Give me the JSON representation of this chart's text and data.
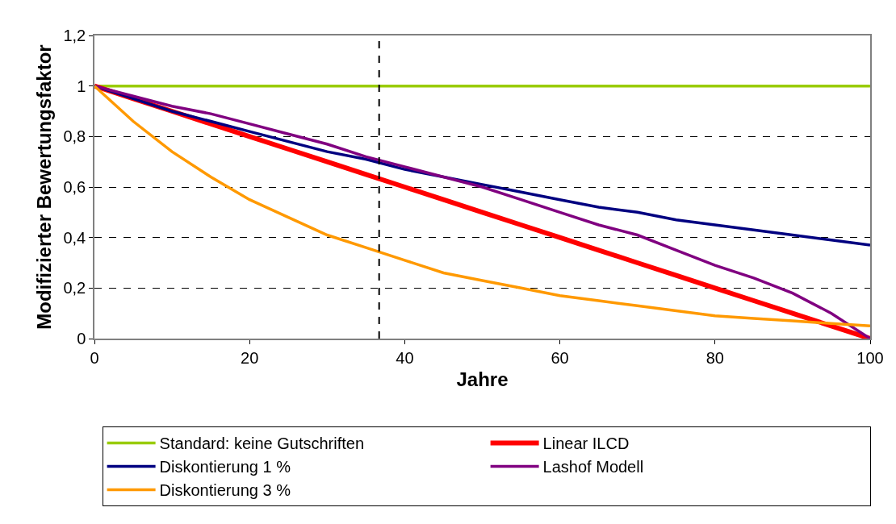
{
  "chart_data": {
    "type": "line",
    "xlabel": "Jahre",
    "ylabel": "Modifizierter Bewertungsfaktor",
    "x": [
      0,
      5,
      10,
      15,
      20,
      25,
      30,
      35,
      40,
      45,
      50,
      55,
      60,
      65,
      70,
      75,
      80,
      85,
      90,
      95,
      100
    ],
    "series": [
      {
        "name": "Standard: keine Gutschriften",
        "color": "#99cc00",
        "values": [
          1,
          1,
          1,
          1,
          1,
          1,
          1,
          1,
          1,
          1,
          1,
          1,
          1,
          1,
          1,
          1,
          1,
          1,
          1,
          1,
          1
        ]
      },
      {
        "name": "Linear ILCD",
        "color": "#ff0000",
        "values": [
          1,
          0.95,
          0.9,
          0.85,
          0.8,
          0.75,
          0.7,
          0.65,
          0.6,
          0.55,
          0.5,
          0.45,
          0.4,
          0.35,
          0.3,
          0.25,
          0.2,
          0.15,
          0.1,
          0.05,
          0
        ]
      },
      {
        "name": "Diskontierung 1 %",
        "color": "#000080",
        "values": [
          1,
          0.95,
          0.9,
          0.86,
          0.82,
          0.78,
          0.74,
          0.71,
          0.67,
          0.64,
          0.61,
          0.58,
          0.55,
          0.52,
          0.5,
          0.47,
          0.45,
          0.43,
          0.41,
          0.39,
          0.37
        ]
      },
      {
        "name": "Lashof Modell",
        "color": "#800080",
        "values": [
          1,
          0.96,
          0.92,
          0.89,
          0.85,
          0.81,
          0.77,
          0.72,
          0.68,
          0.64,
          0.6,
          0.55,
          0.5,
          0.45,
          0.41,
          0.35,
          0.29,
          0.24,
          0.18,
          0.1,
          0
        ]
      },
      {
        "name": "Diskontierung 3 %",
        "color": "#ff9900",
        "values": [
          1,
          0.86,
          0.74,
          0.64,
          0.55,
          0.48,
          0.41,
          0.36,
          0.31,
          0.26,
          0.23,
          0.2,
          0.17,
          0.15,
          0.13,
          0.11,
          0.09,
          0.08,
          0.07,
          0.06,
          0.05
        ]
      }
    ],
    "xlim": [
      0,
      100
    ],
    "xticks": [
      0,
      20,
      40,
      60,
      80,
      100
    ],
    "ylim": [
      0,
      1.2
    ],
    "yticks": [
      0,
      {
        "value": 0.2,
        "label": "0,2"
      },
      {
        "value": 0.4,
        "label": "0,4"
      },
      {
        "value": 0.6,
        "label": "0,6"
      },
      {
        "value": 0.8,
        "label": "0,8"
      },
      1,
      {
        "value": 1.2,
        "label": "1,2"
      }
    ],
    "ref_lines": [
      {
        "axis": "x",
        "value": 36.7,
        "color": "#000000",
        "line_style": "dashed"
      }
    ],
    "grid": "y",
    "legend": "bottom",
    "marker": "none",
    "line_style": "solid"
  }
}
